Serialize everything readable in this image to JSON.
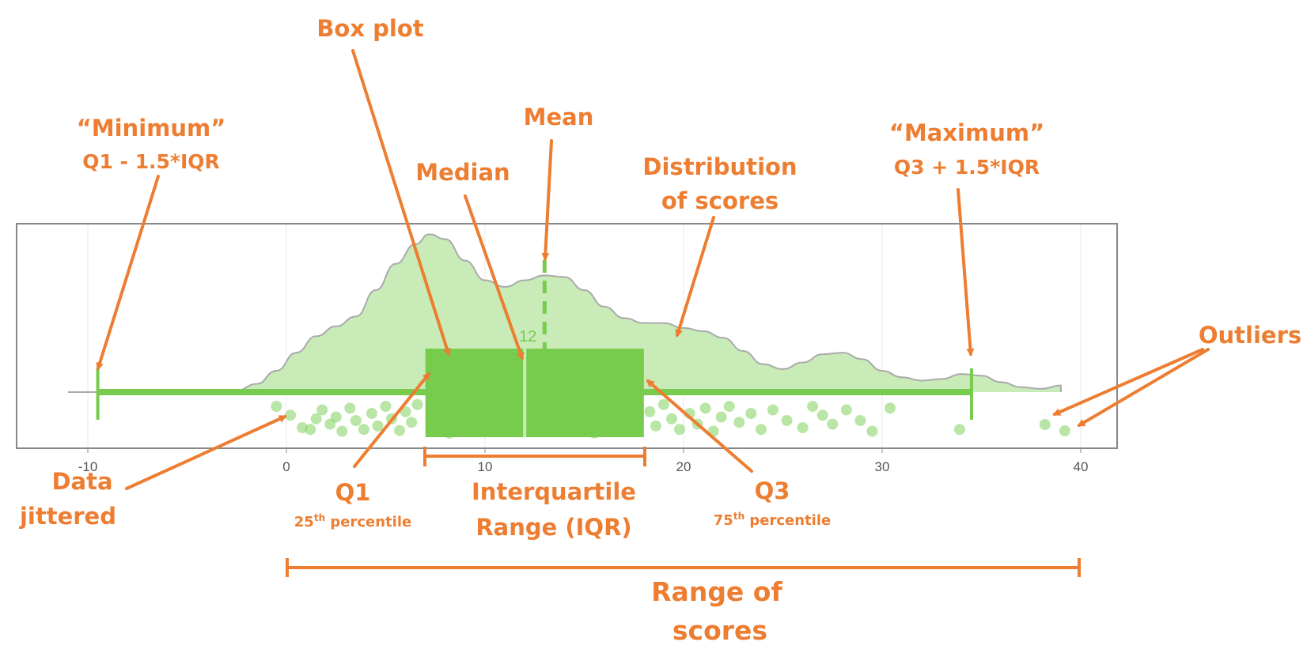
{
  "chart_data": {
    "type": "box",
    "x_ticks": [
      "-10",
      "0",
      "10",
      "20",
      "30",
      "40"
    ],
    "xlim": [
      -14,
      41.5
    ],
    "box": {
      "whisker_low": -9.5,
      "q1": 7,
      "median": 12,
      "mean": 13,
      "q3": 18,
      "whisker_high": 34.5
    },
    "median_label": "12",
    "outliers": [
      38.2,
      39.2
    ],
    "density": [
      [
        -11,
        0
      ],
      [
        -2.5,
        0.01
      ],
      [
        -1.5,
        0.05
      ],
      [
        -0.5,
        0.13
      ],
      [
        0.5,
        0.24
      ],
      [
        1.5,
        0.34
      ],
      [
        2.5,
        0.4
      ],
      [
        3.5,
        0.46
      ],
      [
        4.5,
        0.62
      ],
      [
        5.5,
        0.78
      ],
      [
        6.5,
        0.9
      ],
      [
        7.2,
        0.96
      ],
      [
        8,
        0.93
      ],
      [
        9,
        0.8
      ],
      [
        10,
        0.68
      ],
      [
        11,
        0.64
      ],
      [
        12,
        0.68
      ],
      [
        13,
        0.71
      ],
      [
        14,
        0.7
      ],
      [
        15,
        0.62
      ],
      [
        16,
        0.52
      ],
      [
        17,
        0.45
      ],
      [
        18,
        0.42
      ],
      [
        19,
        0.42
      ],
      [
        20,
        0.39
      ],
      [
        21,
        0.37
      ],
      [
        22,
        0.33
      ],
      [
        23,
        0.25
      ],
      [
        24,
        0.17
      ],
      [
        25,
        0.14
      ],
      [
        26,
        0.18
      ],
      [
        27,
        0.23
      ],
      [
        28,
        0.24
      ],
      [
        29,
        0.2
      ],
      [
        30,
        0.13
      ],
      [
        31,
        0.09
      ],
      [
        32,
        0.07
      ],
      [
        33,
        0.08
      ],
      [
        34,
        0.11
      ],
      [
        35,
        0.1
      ],
      [
        36,
        0.06
      ],
      [
        37,
        0.03
      ],
      [
        38,
        0.02
      ],
      [
        39,
        0.04
      ]
    ],
    "jitter": [
      [
        -0.5,
        0.2
      ],
      [
        0.2,
        0.45
      ],
      [
        0.8,
        0.8
      ],
      [
        1.2,
        0.85
      ],
      [
        1.5,
        0.55
      ],
      [
        1.8,
        0.3
      ],
      [
        2.2,
        0.7
      ],
      [
        2.5,
        0.5
      ],
      [
        2.8,
        0.9
      ],
      [
        3.2,
        0.25
      ],
      [
        3.5,
        0.6
      ],
      [
        3.9,
        0.85
      ],
      [
        4.3,
        0.4
      ],
      [
        4.6,
        0.75
      ],
      [
        5.0,
        0.2
      ],
      [
        5.3,
        0.55
      ],
      [
        5.7,
        0.88
      ],
      [
        6.0,
        0.35
      ],
      [
        6.3,
        0.65
      ],
      [
        6.6,
        0.15
      ],
      [
        7.5,
        0.3
      ],
      [
        8.2,
        0.95
      ],
      [
        9.0,
        0.85
      ],
      [
        9.5,
        0.4
      ],
      [
        10.2,
        0.7
      ],
      [
        11.0,
        0.2
      ],
      [
        11.5,
        0.9
      ],
      [
        12.5,
        0.55
      ],
      [
        13.2,
        0.3
      ],
      [
        14.0,
        0.8
      ],
      [
        14.8,
        0.45
      ],
      [
        15.5,
        0.95
      ],
      [
        16.2,
        0.25
      ],
      [
        17.0,
        0.6
      ],
      [
        17.5,
        0.9
      ],
      [
        18.3,
        0.35
      ],
      [
        18.6,
        0.75
      ],
      [
        19.0,
        0.15
      ],
      [
        19.4,
        0.55
      ],
      [
        19.8,
        0.85
      ],
      [
        20.3,
        0.4
      ],
      [
        20.7,
        0.7
      ],
      [
        21.1,
        0.25
      ],
      [
        21.5,
        0.9
      ],
      [
        21.9,
        0.5
      ],
      [
        22.3,
        0.2
      ],
      [
        22.8,
        0.65
      ],
      [
        23.4,
        0.4
      ],
      [
        23.9,
        0.85
      ],
      [
        24.5,
        0.3
      ],
      [
        25.2,
        0.6
      ],
      [
        26.0,
        0.8
      ],
      [
        26.5,
        0.2
      ],
      [
        27.0,
        0.45
      ],
      [
        27.5,
        0.7
      ],
      [
        28.2,
        0.3
      ],
      [
        28.9,
        0.6
      ],
      [
        29.5,
        0.9
      ],
      [
        30.4,
        0.25
      ],
      [
        33.9,
        0.85
      ]
    ]
  },
  "annotations": {
    "box_plot": "Box plot",
    "mean": "Mean",
    "median": "Median",
    "minimum_title": "“Minimum”",
    "minimum_formula": "Q1 - 1.5*IQR",
    "maximum_title": "“Maximum”",
    "maximum_formula": "Q3 + 1.5*IQR",
    "distribution_line1": "Distribution",
    "distribution_line2": "of scores",
    "outliers": "Outliers",
    "data_jittered_line1": "Data",
    "data_jittered_line2": "jittered",
    "q1": "Q1",
    "q1_sub": "25",
    "q1_sup": "th",
    "q1_rest": " percentile",
    "iqr_line1": "Interquartile",
    "iqr_line2": "Range (IQR)",
    "q3": "Q3",
    "q3_sub": "75",
    "q3_sup": "th",
    "q3_rest": " percentile",
    "range_line1": "Range of",
    "range_line2": "scores"
  },
  "colors": {
    "annotation": "#ED7D31",
    "box": "#77CC4E",
    "density_fill": "#C8EBB7",
    "density_stroke": "#AAAAAA",
    "jitter": "#8AD56A",
    "frame": "#888888"
  }
}
